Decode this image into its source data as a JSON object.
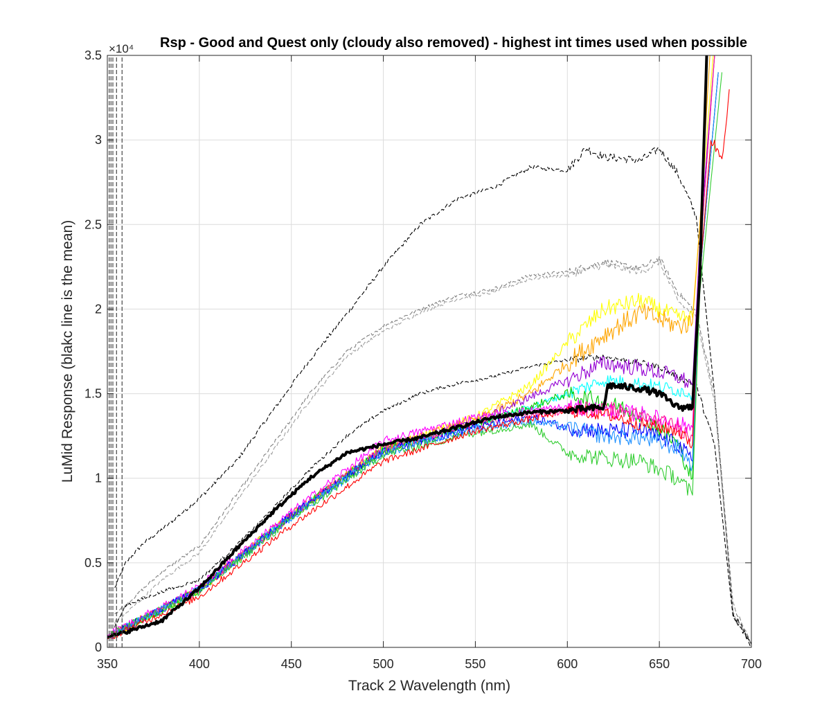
{
  "chart_data": {
    "type": "line",
    "title": "Rsp - Good and Quest only (cloudy also removed) - highest int times used when possible",
    "xlabel": "Track 2 Wavelength (nm)",
    "ylabel": "LuMid Response (blakc line is the mean)",
    "y_exponent": "×10⁴",
    "xlim": [
      350,
      700
    ],
    "ylim": [
      0,
      3.5
    ],
    "grid": true,
    "xticks": [
      350,
      400,
      450,
      500,
      550,
      600,
      650,
      700
    ],
    "xtick_labels": [
      "350",
      "400",
      "450",
      "500",
      "550",
      "600",
      "650",
      "700"
    ],
    "yticks": [
      0,
      0.5,
      1,
      1.5,
      2,
      2.5,
      3,
      3.5
    ],
    "ytick_labels": [
      "0",
      "0.5",
      "1",
      "1.5",
      "2",
      "2.5",
      "3",
      "3.5"
    ],
    "series": [
      {
        "color": "#000000",
        "style": "dashed",
        "noise": 0.012,
        "x": [
          354,
          360,
          370,
          380,
          400,
          420,
          440,
          460,
          480,
          500,
          520,
          540,
          560,
          580,
          600,
          610,
          620,
          640,
          650,
          660,
          670,
          680,
          690,
          700
        ],
        "y": [
          0.35,
          0.5,
          0.62,
          0.7,
          0.88,
          1.1,
          1.4,
          1.7,
          1.97,
          2.25,
          2.5,
          2.65,
          2.72,
          2.84,
          2.82,
          2.95,
          2.9,
          2.88,
          2.95,
          2.8,
          2.55,
          1.5,
          0.2,
          0.02
        ]
      },
      {
        "color": "#808080",
        "style": "dashed",
        "noise": 0.01,
        "x": [
          354,
          360,
          380,
          400,
          420,
          440,
          460,
          480,
          500,
          520,
          540,
          560,
          580,
          600,
          620,
          640,
          650,
          660,
          670,
          680,
          690,
          700
        ],
        "y": [
          0.2,
          0.25,
          0.45,
          0.6,
          0.9,
          1.2,
          1.5,
          1.75,
          1.9,
          2.0,
          2.08,
          2.12,
          2.2,
          2.22,
          2.28,
          2.24,
          2.3,
          2.1,
          1.98,
          1.5,
          0.25,
          0.02
        ]
      },
      {
        "color": "#a0a0a0",
        "style": "dashed",
        "noise": 0.01,
        "x": [
          354,
          360,
          380,
          400,
          420,
          440,
          460,
          480,
          500,
          520,
          540,
          560,
          580,
          600,
          620,
          640,
          650,
          660,
          670,
          680,
          690,
          700
        ],
        "y": [
          0.15,
          0.2,
          0.4,
          0.56,
          0.86,
          1.16,
          1.46,
          1.72,
          1.87,
          1.98,
          2.06,
          2.1,
          2.18,
          2.2,
          2.26,
          2.22,
          2.28,
          2.05,
          1.95,
          1.45,
          0.2,
          0.02
        ]
      },
      {
        "color": "#000000",
        "style": "dashed",
        "noise": 0.01,
        "x": [
          354,
          360,
          380,
          400,
          420,
          440,
          460,
          480,
          500,
          520,
          540,
          560,
          580,
          600,
          620,
          640,
          650,
          660,
          670,
          680,
          690,
          700
        ],
        "y": [
          0.12,
          0.25,
          0.33,
          0.4,
          0.6,
          0.82,
          1.05,
          1.25,
          1.4,
          1.5,
          1.56,
          1.6,
          1.66,
          1.7,
          1.72,
          1.68,
          1.66,
          1.6,
          1.55,
          1.2,
          0.18,
          0.02
        ]
      },
      {
        "color": "#ffff00",
        "style": "solid",
        "noise": 0.025,
        "x": [
          350,
          400,
          450,
          500,
          550,
          580,
          600,
          620,
          640,
          660,
          668,
          672,
          680
        ],
        "y": [
          0.06,
          0.34,
          0.78,
          1.18,
          1.36,
          1.55,
          1.8,
          2.0,
          2.05,
          1.95,
          1.95,
          2.5,
          3.6
        ]
      },
      {
        "color": "#ffa500",
        "style": "solid",
        "noise": 0.03,
        "x": [
          350,
          400,
          450,
          500,
          550,
          580,
          600,
          620,
          640,
          660,
          668,
          672,
          678
        ],
        "y": [
          0.06,
          0.34,
          0.78,
          1.17,
          1.34,
          1.5,
          1.68,
          1.85,
          1.98,
          1.9,
          1.92,
          2.5,
          3.6
        ]
      },
      {
        "color": "#9400d3",
        "style": "solid",
        "noise": 0.025,
        "x": [
          350,
          400,
          450,
          500,
          550,
          580,
          600,
          620,
          640,
          660,
          668,
          672,
          680
        ],
        "y": [
          0.06,
          0.34,
          0.78,
          1.17,
          1.33,
          1.48,
          1.58,
          1.68,
          1.65,
          1.6,
          1.55,
          2.4,
          3.5
        ]
      },
      {
        "color": "#00ffff",
        "style": "solid",
        "noise": 0.02,
        "x": [
          350,
          400,
          450,
          500,
          550,
          580,
          600,
          620,
          640,
          660,
          668,
          672,
          680
        ],
        "y": [
          0.06,
          0.34,
          0.78,
          1.17,
          1.32,
          1.42,
          1.5,
          1.58,
          1.56,
          1.52,
          1.5,
          2.3,
          3.5
        ]
      },
      {
        "color": "#00cc00",
        "style": "solid",
        "noise": 0.025,
        "x": [
          350,
          400,
          450,
          500,
          550,
          580,
          600,
          620,
          640,
          660,
          668,
          672,
          682
        ],
        "y": [
          0.06,
          0.34,
          0.78,
          1.17,
          1.32,
          1.42,
          1.5,
          1.45,
          1.38,
          1.2,
          1.0,
          2.2,
          3.4
        ]
      },
      {
        "color": "#ff00ff",
        "style": "solid",
        "noise": 0.025,
        "x": [
          350,
          400,
          450,
          500,
          550,
          580,
          600,
          620,
          640,
          660,
          668,
          672,
          680
        ],
        "y": [
          0.07,
          0.36,
          0.8,
          1.22,
          1.36,
          1.4,
          1.42,
          1.4,
          1.38,
          1.32,
          1.3,
          2.3,
          3.5
        ]
      },
      {
        "color": "#ff1493",
        "style": "solid",
        "noise": 0.025,
        "x": [
          350,
          400,
          450,
          500,
          550,
          580,
          600,
          620,
          640,
          660,
          668,
          672,
          680
        ],
        "y": [
          0.06,
          0.34,
          0.78,
          1.18,
          1.32,
          1.38,
          1.4,
          1.42,
          1.36,
          1.3,
          1.25,
          2.3,
          3.5
        ]
      },
      {
        "color": "#0000ff",
        "style": "solid",
        "noise": 0.025,
        "x": [
          350,
          400,
          450,
          500,
          550,
          580,
          600,
          620,
          640,
          660,
          668,
          672,
          682
        ],
        "y": [
          0.06,
          0.34,
          0.78,
          1.16,
          1.3,
          1.36,
          1.3,
          1.28,
          1.28,
          1.2,
          1.1,
          2.2,
          3.4
        ]
      },
      {
        "color": "#1e90ff",
        "style": "solid",
        "noise": 0.025,
        "x": [
          350,
          400,
          450,
          500,
          550,
          580,
          600,
          620,
          640,
          660,
          668,
          672,
          682
        ],
        "y": [
          0.06,
          0.34,
          0.77,
          1.15,
          1.29,
          1.34,
          1.3,
          1.25,
          1.24,
          1.18,
          1.08,
          2.2,
          3.4
        ]
      },
      {
        "color": "#32cd32",
        "style": "solid",
        "noise": 0.025,
        "x": [
          350,
          400,
          450,
          500,
          550,
          580,
          600,
          620,
          640,
          660,
          668,
          672,
          684
        ],
        "y": [
          0.06,
          0.33,
          0.76,
          1.14,
          1.27,
          1.32,
          1.15,
          1.12,
          1.1,
          1.0,
          0.9,
          2.1,
          3.4
        ]
      },
      {
        "color": "#ff0000",
        "style": "solid",
        "noise": 0.02,
        "x": [
          350,
          400,
          450,
          500,
          550,
          580,
          600,
          620,
          640,
          660,
          668,
          672,
          678,
          684,
          688
        ],
        "y": [
          0.05,
          0.3,
          0.72,
          1.1,
          1.28,
          1.35,
          1.4,
          1.38,
          1.32,
          1.28,
          1.2,
          2.2,
          3.0,
          2.9,
          3.3
        ]
      },
      {
        "color": "#000000",
        "style": "mean",
        "noise": 0.01,
        "x": [
          350,
          360,
          380,
          400,
          420,
          440,
          460,
          480,
          500,
          520,
          540,
          560,
          580,
          600,
          620,
          622,
          640,
          650,
          660,
          668,
          672,
          676
        ],
        "y": [
          0.06,
          0.09,
          0.16,
          0.35,
          0.58,
          0.8,
          1.0,
          1.15,
          1.2,
          1.24,
          1.3,
          1.36,
          1.39,
          1.4,
          1.42,
          1.55,
          1.53,
          1.5,
          1.42,
          1.42,
          2.2,
          3.6
        ]
      }
    ]
  }
}
